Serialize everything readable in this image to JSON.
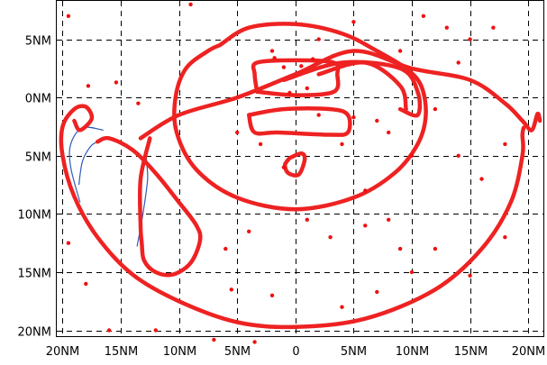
{
  "chart_data": {
    "type": "scatter",
    "title": "",
    "xlabel": "",
    "ylabel": "",
    "xlim": [
      -20.5,
      21.3
    ],
    "ylim": [
      -20.5,
      8.3
    ],
    "grid": true,
    "x_ticks": [
      {
        "value": -20,
        "label": "20NM"
      },
      {
        "value": -15,
        "label": "15NM"
      },
      {
        "value": -10,
        "label": "10NM"
      },
      {
        "value": -5,
        "label": "5NM"
      },
      {
        "value": 0,
        "label": "0"
      },
      {
        "value": 5,
        "label": "5NM"
      },
      {
        "value": 10,
        "label": "10NM"
      },
      {
        "value": 15,
        "label": "15NM"
      },
      {
        "value": 20,
        "label": "20NM"
      }
    ],
    "y_ticks": [
      {
        "value": 5,
        "label": "5NM"
      },
      {
        "value": 0,
        "label": "0NM"
      },
      {
        "value": -5,
        "label": "5NM"
      },
      {
        "value": -10,
        "label": "10NM"
      },
      {
        "value": -15,
        "label": "15NM"
      },
      {
        "value": -20,
        "label": "20NM"
      }
    ],
    "colors": {
      "track": "#ee2222",
      "blue_track": "#2c5cb8",
      "grid": "#000000"
    },
    "series": [
      {
        "kind": "track",
        "points": [
          [
            -13.3,
            -3.5
          ],
          [
            -10,
            -1.5
          ],
          [
            -5,
            0
          ],
          [
            0,
            2
          ],
          [
            5,
            4
          ],
          [
            10,
            2.5
          ],
          [
            15,
            1.5
          ],
          [
            18,
            -0.5
          ],
          [
            19.5,
            -2
          ],
          [
            20.3,
            -2.8
          ],
          [
            20.8,
            -1.4
          ],
          [
            21,
            -2
          ]
        ]
      },
      {
        "kind": "track",
        "points": [
          [
            19.6,
            -2.6
          ],
          [
            19.5,
            -3.2
          ],
          [
            19.5,
            -5
          ],
          [
            18.5,
            -9
          ],
          [
            16,
            -13
          ],
          [
            12,
            -16.5
          ],
          [
            6,
            -19
          ],
          [
            0,
            -19.7
          ],
          [
            -5,
            -19.3
          ],
          [
            -10,
            -17.5
          ],
          [
            -14,
            -15.2
          ],
          [
            -17,
            -12
          ],
          [
            -19,
            -8.5
          ],
          [
            -20,
            -5
          ],
          [
            -20,
            -2.5
          ],
          [
            -19,
            -1
          ],
          [
            -18,
            -0.8
          ],
          [
            -17.5,
            -1.8
          ],
          [
            -18.5,
            -2.8
          ],
          [
            -19,
            -2
          ]
        ]
      },
      {
        "kind": "track",
        "points": [
          [
            -17,
            -3.8
          ],
          [
            -16,
            -3.5
          ],
          [
            -14,
            -4.5
          ],
          [
            -12,
            -6.5
          ],
          [
            -10,
            -9
          ],
          [
            -8.5,
            -11
          ],
          [
            -8.2,
            -12.3
          ],
          [
            -9,
            -14.2
          ],
          [
            -10.5,
            -15.2
          ],
          [
            -12,
            -15
          ],
          [
            -13,
            -14
          ],
          [
            -13.2,
            -12.5
          ],
          [
            -13.3,
            -11
          ],
          [
            -13.3,
            -7
          ],
          [
            -12.5,
            -3.5
          ]
        ]
      },
      {
        "kind": "track",
        "points": [
          [
            -6.5,
            4.5
          ],
          [
            -4,
            6
          ],
          [
            0,
            6.3
          ],
          [
            4,
            5.5
          ],
          [
            7,
            4
          ],
          [
            9.5,
            2.5
          ],
          [
            10.8,
            1
          ],
          [
            11.2,
            -1.5
          ],
          [
            10.5,
            -4
          ],
          [
            8.5,
            -6.5
          ],
          [
            5,
            -8.6
          ],
          [
            0,
            -9.6
          ],
          [
            -5,
            -8.6
          ],
          [
            -8.5,
            -6.2
          ],
          [
            -10.2,
            -3
          ],
          [
            -10.3,
            0
          ],
          [
            -9.4,
            2.5
          ],
          [
            -7.5,
            4
          ],
          [
            -6.5,
            4.5
          ]
        ]
      },
      {
        "kind": "track",
        "points": [
          [
            -4,
            -1.5
          ],
          [
            -1,
            -1
          ],
          [
            3,
            -1
          ],
          [
            4.5,
            -1.5
          ],
          [
            4.5,
            -3
          ],
          [
            3,
            -3.2
          ],
          [
            -1.5,
            -3
          ],
          [
            -3.5,
            -3
          ],
          [
            -4,
            -1.5
          ]
        ]
      },
      {
        "kind": "track",
        "points": [
          [
            -3.3,
            0.5
          ],
          [
            0,
            0.2
          ],
          [
            3.3,
            0.5
          ],
          [
            3.6,
            2
          ],
          [
            3.3,
            3
          ],
          [
            0,
            3.2
          ],
          [
            -3.3,
            3
          ],
          [
            -3.5,
            2
          ],
          [
            -3.3,
            0.5
          ]
        ]
      },
      {
        "kind": "track",
        "points": [
          [
            -0.5,
            -5.2
          ],
          [
            0.5,
            -4.8
          ],
          [
            0.8,
            -5.3
          ],
          [
            0.3,
            -6.6
          ],
          [
            -0.6,
            -6.5
          ],
          [
            -0.9,
            -5.8
          ],
          [
            -0.5,
            -5.2
          ]
        ]
      },
      {
        "kind": "track",
        "points": [
          [
            -1,
            1.5
          ],
          [
            4,
            3
          ],
          [
            9,
            2.5
          ],
          [
            10.5,
            0.5
          ],
          [
            10.5,
            -1.5
          ],
          [
            9,
            -1
          ]
        ]
      },
      {
        "kind": "track",
        "points": [
          [
            2,
            2
          ],
          [
            6,
            3
          ],
          [
            9,
            1
          ],
          [
            9.5,
            -1
          ]
        ]
      },
      {
        "kind": "blue",
        "points": [
          [
            -18.5,
            -9
          ],
          [
            -19.3,
            -6
          ],
          [
            -19.3,
            -4
          ],
          [
            -18.3,
            -2.6
          ],
          [
            -16.5,
            -2.8
          ]
        ]
      },
      {
        "kind": "blue",
        "points": [
          [
            -17,
            -3.8
          ],
          [
            -17.6,
            -4.2
          ],
          [
            -18.3,
            -5.5
          ],
          [
            -18.6,
            -7.5
          ]
        ]
      },
      {
        "kind": "blue",
        "points": [
          [
            -12.4,
            -3.7
          ],
          [
            -12.8,
            -5
          ],
          [
            -12.7,
            -7
          ],
          [
            -13.1,
            -10
          ],
          [
            -13.6,
            -12.8
          ]
        ]
      },
      {
        "kind": "scatter",
        "points": [
          [
            -19.5,
            7
          ],
          [
            -17.8,
            1
          ],
          [
            -15.4,
            1.3
          ],
          [
            -13.5,
            -0.5
          ],
          [
            -9,
            8
          ],
          [
            -5,
            -3
          ],
          [
            -3,
            -4
          ],
          [
            -1,
            -6
          ],
          [
            1,
            0.8
          ],
          [
            2,
            -1.5
          ],
          [
            4,
            -4
          ],
          [
            5,
            -1.7
          ],
          [
            6,
            -8
          ],
          [
            7,
            -2
          ],
          [
            8,
            -3
          ],
          [
            10,
            -5
          ],
          [
            9,
            4
          ],
          [
            11,
            7
          ],
          [
            13,
            6
          ],
          [
            15,
            5
          ],
          [
            17,
            6
          ],
          [
            14,
            3
          ],
          [
            16,
            -7
          ],
          [
            18,
            -4
          ],
          [
            -19.5,
            -12.5
          ],
          [
            -18,
            -16
          ],
          [
            -16,
            -20
          ],
          [
            -12,
            -20
          ],
          [
            -7,
            -20.8
          ],
          [
            -5.5,
            -16.5
          ],
          [
            -2,
            -17
          ],
          [
            -3.5,
            -21
          ],
          [
            4,
            -18
          ],
          [
            7,
            -16.7
          ],
          [
            9,
            -13
          ],
          [
            10,
            -15
          ],
          [
            12,
            -13
          ],
          [
            15,
            -15.3
          ],
          [
            18,
            -12
          ],
          [
            3,
            -12
          ],
          [
            8,
            -10.5
          ],
          [
            14,
            -5
          ],
          [
            12,
            -1
          ],
          [
            6,
            -11
          ],
          [
            -6,
            -13
          ],
          [
            -4,
            -11.5
          ],
          [
            1,
            -10.5
          ],
          [
            -2,
            4
          ],
          [
            2,
            5
          ],
          [
            5,
            6.5
          ],
          [
            -1,
            2.6
          ],
          [
            -0.5,
            0.4
          ],
          [
            0.5,
            2.7
          ],
          [
            -1.8,
            3.4
          ],
          [
            1.5,
            3.3
          ]
        ]
      }
    ]
  }
}
